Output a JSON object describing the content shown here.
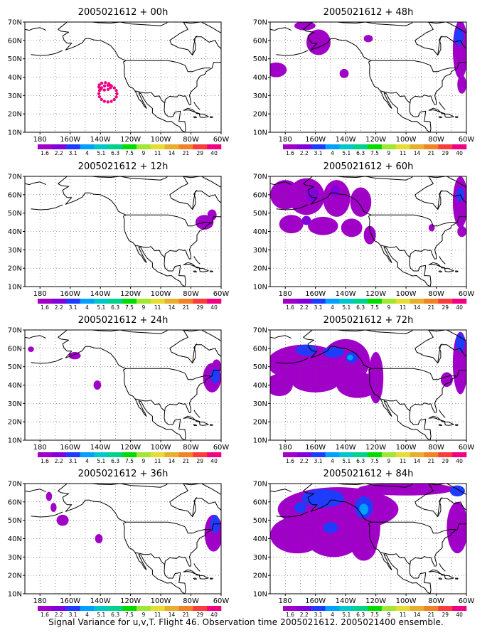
{
  "caption": "Signal Variance for u,v,T. Flight 46. Observation time 2005021612. 2005021400 ensemble.",
  "chart_data": {
    "type": "heatmap",
    "layout": "4 rows x 2 columns of map panels",
    "axes": {
      "x_ticks": [
        "180",
        "160W",
        "140W",
        "120W",
        "100W",
        "80W",
        "60W"
      ],
      "y_ticks": [
        "10N",
        "20N",
        "30N",
        "40N",
        "50N",
        "60N",
        "70N"
      ],
      "x_range_lon": [
        -190,
        -60
      ],
      "y_range_lat": [
        10,
        70
      ],
      "grid": "dotted"
    },
    "colorbar": {
      "labels": [
        "1.6",
        "2.2",
        "3.1",
        "4",
        "5.1",
        "6.3",
        "7.5",
        "9",
        "11",
        "14",
        "21",
        "29",
        "40"
      ],
      "colors": [
        "#a000c8",
        "#8200dc",
        "#1e3cff",
        "#00a0ff",
        "#00c8c8",
        "#00d28c",
        "#00dc00",
        "#a0e632",
        "#e6dc32",
        "#e6af2d",
        "#f08228",
        "#fa3c3c",
        "#f00082"
      ]
    },
    "panels": [
      {
        "title": "2005021612 + 00h",
        "features": [
          {
            "kind": "dots",
            "lon": -135,
            "lat": 31,
            "rx": 6,
            "ry": 4.5,
            "count": 16,
            "level": 12
          },
          {
            "kind": "dots",
            "lon": -137,
            "lat": 35,
            "rx": 4,
            "ry": 2,
            "count": 10,
            "level": 12
          }
        ]
      },
      {
        "title": "2005021612 + 48h",
        "features": [
          {
            "lon": -167,
            "lat": 68,
            "rx": 7,
            "ry": 2.5,
            "level": 0
          },
          {
            "lon": -158,
            "lat": 59,
            "rx": 8,
            "ry": 7,
            "level": 0
          },
          {
            "lon": -186,
            "lat": 44,
            "rx": 7,
            "ry": 4,
            "level": 0
          },
          {
            "lon": -141,
            "lat": 42,
            "rx": 3,
            "ry": 2.5,
            "level": 0
          },
          {
            "lon": -125,
            "lat": 61,
            "rx": 3,
            "ry": 2,
            "level": 0
          },
          {
            "lon": -64,
            "lat": 55,
            "rx": 5,
            "ry": 16,
            "level": 0
          },
          {
            "lon": -65,
            "lat": 62,
            "rx": 3,
            "ry": 5,
            "level": 2
          },
          {
            "lon": -63,
            "lat": 36,
            "rx": 3,
            "ry": 5,
            "level": 0
          }
        ]
      },
      {
        "title": "2005021612 + 12h",
        "features": [
          {
            "lon": -71,
            "lat": 45,
            "rx": 6,
            "ry": 4,
            "level": 0
          },
          {
            "lon": -66,
            "lat": 49,
            "rx": 3,
            "ry": 3,
            "level": 0
          }
        ]
      },
      {
        "title": "2005021612 + 60h",
        "features": [
          {
            "lon": -180,
            "lat": 60,
            "rx": 10,
            "ry": 8,
            "level": 0
          },
          {
            "lon": -166,
            "lat": 59,
            "rx": 12,
            "ry": 10,
            "level": 0
          },
          {
            "lon": -146,
            "lat": 58,
            "rx": 9,
            "ry": 10,
            "level": 0
          },
          {
            "lon": -130,
            "lat": 56,
            "rx": 7,
            "ry": 8,
            "level": 0
          },
          {
            "lon": -176,
            "lat": 44,
            "rx": 8,
            "ry": 5,
            "level": 0
          },
          {
            "lon": -155,
            "lat": 43,
            "rx": 10,
            "ry": 5,
            "level": 0
          },
          {
            "lon": -136,
            "lat": 42,
            "rx": 7,
            "ry": 5,
            "level": 0
          },
          {
            "lon": -124,
            "lat": 38,
            "rx": 4,
            "ry": 5,
            "level": 0
          },
          {
            "lon": -64,
            "lat": 56,
            "rx": 5,
            "ry": 14,
            "level": 0
          },
          {
            "lon": -63,
            "lat": 40,
            "rx": 3,
            "ry": 3,
            "level": 0
          },
          {
            "lon": -83,
            "lat": 42,
            "rx": 2,
            "ry": 2,
            "level": 0
          },
          {
            "lon": -162,
            "lat": 60,
            "rx": 4,
            "ry": 4,
            "level": 1
          },
          {
            "lon": -147,
            "lat": 62,
            "rx": 3,
            "ry": 3,
            "level": 1
          },
          {
            "lon": -166,
            "lat": 46,
            "rx": 3,
            "ry": 2.5,
            "level": 1
          },
          {
            "lon": -64,
            "lat": 60,
            "rx": 2.5,
            "ry": 4,
            "level": 2
          }
        ]
      },
      {
        "title": "2005021612 + 24h",
        "features": [
          {
            "lon": -186,
            "lat": 59.5,
            "rx": 2,
            "ry": 1.5,
            "level": 0
          },
          {
            "lon": -157,
            "lat": 56,
            "rx": 4,
            "ry": 2,
            "level": 0
          },
          {
            "lon": -142,
            "lat": 40,
            "rx": 2.5,
            "ry": 2.5,
            "level": 0
          },
          {
            "lon": -66,
            "lat": 44,
            "rx": 6,
            "ry": 8,
            "level": 0
          },
          {
            "lon": -63,
            "lat": 50,
            "rx": 3,
            "ry": 4,
            "level": 0
          },
          {
            "lon": -64,
            "lat": 45,
            "rx": 3,
            "ry": 4,
            "level": 2
          }
        ]
      },
      {
        "title": "2005021612 + 72h",
        "features": [
          {
            "lon": -167,
            "lat": 52,
            "rx": 25,
            "ry": 10,
            "level": 0
          },
          {
            "lon": -140,
            "lat": 53,
            "rx": 16,
            "ry": 12,
            "level": 0
          },
          {
            "lon": -184,
            "lat": 40,
            "rx": 9,
            "ry": 6,
            "level": 0
          },
          {
            "lon": -160,
            "lat": 42,
            "rx": 16,
            "ry": 6,
            "level": 0
          },
          {
            "lon": -132,
            "lat": 40,
            "rx": 14,
            "ry": 7,
            "level": 0
          },
          {
            "lon": -120,
            "lat": 44,
            "rx": 5,
            "ry": 14,
            "level": 0
          },
          {
            "lon": -73,
            "lat": 43,
            "rx": 4,
            "ry": 4,
            "level": 0
          },
          {
            "lon": -64,
            "lat": 52,
            "rx": 5,
            "ry": 17,
            "level": 0
          },
          {
            "lon": -166,
            "lat": 59,
            "rx": 7,
            "ry": 3,
            "level": 2
          },
          {
            "lon": -148,
            "lat": 58,
            "rx": 7,
            "ry": 3,
            "level": 2
          },
          {
            "lon": -136,
            "lat": 55,
            "rx": 4,
            "ry": 3,
            "level": 2
          },
          {
            "lon": -137,
            "lat": 55,
            "rx": 2,
            "ry": 1.5,
            "level": 3
          },
          {
            "lon": -64,
            "lat": 63,
            "rx": 3,
            "ry": 5,
            "level": 2
          }
        ]
      },
      {
        "title": "2005021612 + 36h",
        "features": [
          {
            "lon": -174,
            "lat": 63,
            "rx": 2,
            "ry": 2.5,
            "level": 0
          },
          {
            "lon": -165,
            "lat": 50,
            "rx": 4,
            "ry": 3,
            "level": 0
          },
          {
            "lon": -171,
            "lat": 57,
            "rx": 2,
            "ry": 2.5,
            "level": 0
          },
          {
            "lon": -141,
            "lat": 40,
            "rx": 2.5,
            "ry": 2.5,
            "level": 0
          },
          {
            "lon": -65,
            "lat": 43,
            "rx": 6,
            "ry": 10,
            "level": 0
          },
          {
            "lon": -64,
            "lat": 48,
            "rx": 3,
            "ry": 5,
            "level": 2
          }
        ]
      },
      {
        "title": "2005021612 + 84h",
        "features": [
          {
            "lon": -145,
            "lat": 56,
            "rx": 40,
            "ry": 12,
            "level": 0
          },
          {
            "lon": -172,
            "lat": 42,
            "rx": 18,
            "ry": 10,
            "level": 0
          },
          {
            "lon": -148,
            "lat": 40,
            "rx": 18,
            "ry": 10,
            "level": 0
          },
          {
            "lon": -128,
            "lat": 38,
            "rx": 9,
            "ry": 10,
            "level": 0
          },
          {
            "lon": -122,
            "lat": 48,
            "rx": 5,
            "ry": 14,
            "level": 0
          },
          {
            "lon": -66,
            "lat": 46,
            "rx": 7,
            "ry": 14,
            "level": 0
          },
          {
            "lon": -100,
            "lat": 67,
            "rx": 32,
            "ry": 3.5,
            "level": 0
          },
          {
            "lon": -155,
            "lat": 62,
            "rx": 14,
            "ry": 5,
            "level": 2
          },
          {
            "lon": -128,
            "lat": 57,
            "rx": 6,
            "ry": 6,
            "level": 2
          },
          {
            "lon": -150,
            "lat": 46,
            "rx": 5,
            "ry": 3,
            "level": 2
          },
          {
            "lon": -170,
            "lat": 57,
            "rx": 4,
            "ry": 3,
            "level": 2
          },
          {
            "lon": -128,
            "lat": 56,
            "rx": 3,
            "ry": 3,
            "level": 3
          },
          {
            "lon": -66,
            "lat": 66,
            "rx": 5,
            "ry": 3,
            "level": 2
          }
        ]
      }
    ]
  }
}
